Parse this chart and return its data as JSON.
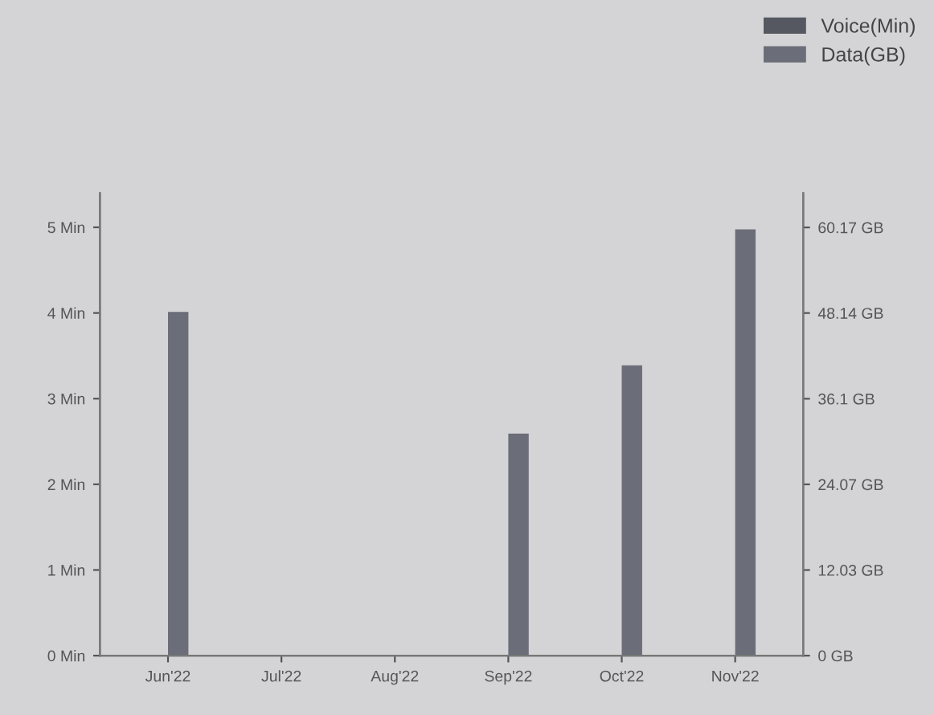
{
  "chart_data": {
    "type": "bar",
    "categories": [
      "Jun'22",
      "Jul'22",
      "Aug'22",
      "Sep'22",
      "Oct'22",
      "Nov'22"
    ],
    "series": [
      {
        "name": "Voice(Min)",
        "color": "#555860",
        "values": [
          0,
          0,
          0,
          0,
          0,
          0
        ]
      },
      {
        "name": "Data(GB)",
        "color": "#6b6e78",
        "axis": "y2",
        "values": [
          48.3,
          0,
          0,
          31.2,
          40.8,
          59.9
        ]
      }
    ],
    "ylim": [
      0,
      5.4
    ],
    "yticks": [
      {
        "value": 0,
        "label": "0 Min"
      },
      {
        "value": 1,
        "label": "1 Min"
      },
      {
        "value": 2,
        "label": "2 Min"
      },
      {
        "value": 3,
        "label": "3 Min"
      },
      {
        "value": 4,
        "label": "4 Min"
      },
      {
        "value": 5,
        "label": "5 Min"
      }
    ],
    "y2lim": [
      0,
      65
    ],
    "y2ticks": [
      {
        "value": 0,
        "label": "0 GB"
      },
      {
        "value": 12.03,
        "label": "12.03 GB"
      },
      {
        "value": 24.07,
        "label": "24.07 GB"
      },
      {
        "value": 36.1,
        "label": "36.1 GB"
      },
      {
        "value": 48.14,
        "label": "48.14 GB"
      },
      {
        "value": 60.17,
        "label": "60.17 GB"
      }
    ],
    "grid": false,
    "legend": "top right"
  }
}
